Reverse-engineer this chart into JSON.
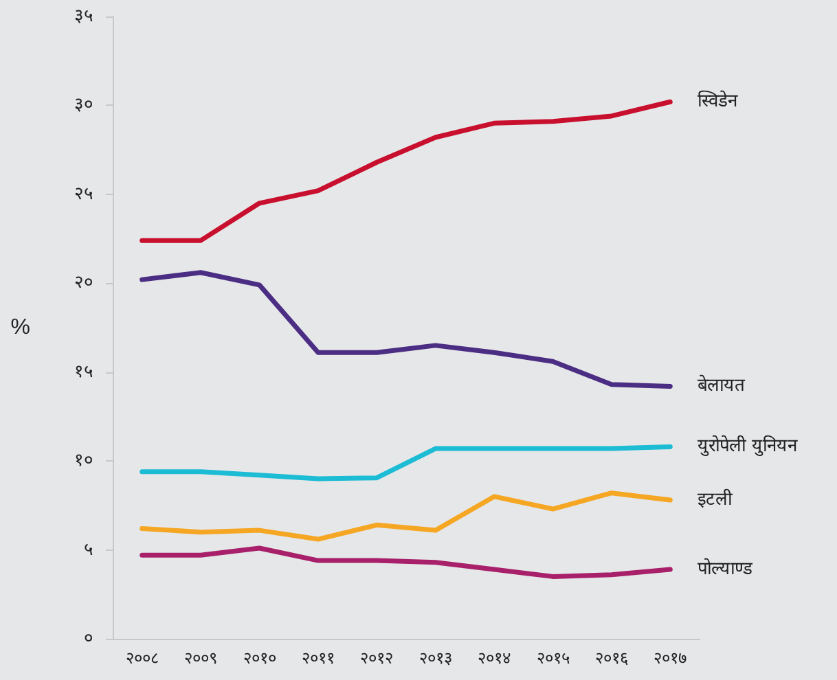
{
  "chart_data": {
    "type": "line",
    "ylabel": "%",
    "categories": [
      "२००८",
      "२००९",
      "२०१०",
      "२०११",
      "२०१२",
      "२०१३",
      "२०१४",
      "२०१५",
      "२०१६",
      "२०१७"
    ],
    "ylim": [
      0,
      35
    ],
    "yticks": [
      {
        "value": 0,
        "label": "०"
      },
      {
        "value": 5,
        "label": "५"
      },
      {
        "value": 10,
        "label": "१०"
      },
      {
        "value": 15,
        "label": "१५"
      },
      {
        "value": 20,
        "label": "२०"
      },
      {
        "value": 25,
        "label": "२५"
      },
      {
        "value": 30,
        "label": "३०"
      },
      {
        "value": 35,
        "label": "३५"
      }
    ],
    "grid": false,
    "legend": false,
    "marker": "none",
    "line_style": "solid",
    "series": [
      {
        "name": "स्विडेन",
        "color": "#c8102e",
        "values": [
          22.4,
          22.4,
          24.5,
          25.2,
          26.8,
          28.2,
          29.0,
          29.1,
          29.4,
          30.2
        ]
      },
      {
        "name": "बेलायत",
        "color": "#4b2e83",
        "values": [
          20.2,
          20.6,
          19.9,
          16.1,
          16.1,
          16.5,
          16.1,
          15.6,
          14.3,
          14.2
        ]
      },
      {
        "name": "युरोपेली युनियन",
        "color": "#1cbcd4",
        "values": [
          9.4,
          9.4,
          9.2,
          9.0,
          9.05,
          10.7,
          10.7,
          10.7,
          10.7,
          10.8
        ]
      },
      {
        "name": "इटली",
        "color": "#f5a623",
        "values": [
          6.2,
          6.0,
          6.1,
          5.6,
          6.4,
          6.1,
          8.0,
          7.3,
          8.2,
          7.8
        ]
      },
      {
        "name": "पोल्याण्ड",
        "color": "#a8206a",
        "values": [
          4.7,
          4.7,
          5.1,
          4.4,
          4.4,
          4.3,
          3.9,
          3.5,
          3.6,
          3.9
        ]
      }
    ]
  }
}
